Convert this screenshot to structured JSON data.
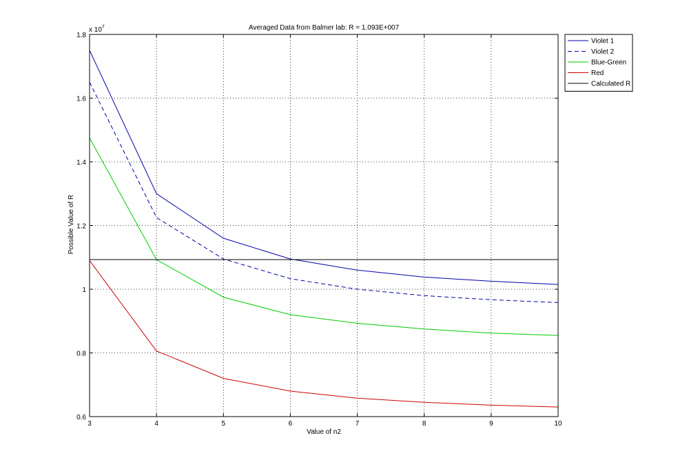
{
  "chart_data": {
    "type": "line",
    "title": "Averaged Data from Balmer lab: R = 1.093E+007",
    "xlabel": "Value of n2",
    "ylabel": "Possible Value of R",
    "y_exponent_label": "x 10",
    "y_exponent_power": "7",
    "xlim": [
      3,
      10
    ],
    "ylim": [
      0.6,
      1.8
    ],
    "y_scale_factor": 10000000,
    "x_ticks": [
      3,
      4,
      5,
      6,
      7,
      8,
      9,
      10
    ],
    "x_tick_labels": [
      "3",
      "4",
      "5",
      "6",
      "7",
      "8",
      "9",
      "10"
    ],
    "y_ticks": [
      0.6,
      0.8,
      1.0,
      1.2,
      1.4,
      1.6,
      1.8
    ],
    "y_tick_labels": [
      "0.6",
      "0.8",
      "1",
      "1.2",
      "1.4",
      "1.6",
      "1.8"
    ],
    "grid": true,
    "legend_position": "outside-top-right",
    "x": [
      3,
      4,
      5,
      6,
      7,
      8,
      9,
      10
    ],
    "series": [
      {
        "name": "Violet 1",
        "color": "#0000aa",
        "dash": "solid",
        "values": [
          1.75,
          1.3,
          1.16,
          1.095,
          1.06,
          1.038,
          1.025,
          1.015
        ]
      },
      {
        "name": "Violet 2",
        "color": "#0000aa",
        "dash": "dashed",
        "values": [
          1.65,
          1.225,
          1.095,
          1.033,
          1.0,
          0.98,
          0.967,
          0.958
        ]
      },
      {
        "name": "Blue-Green",
        "color": "#00cc00",
        "dash": "solid",
        "values": [
          1.475,
          1.093,
          0.975,
          0.92,
          0.893,
          0.875,
          0.862,
          0.855
        ]
      },
      {
        "name": "Red",
        "color": "#cc0000",
        "dash": "solid",
        "values": [
          1.09,
          0.806,
          0.72,
          0.68,
          0.658,
          0.645,
          0.636,
          0.63
        ]
      },
      {
        "name": "Calculated R",
        "color": "#000000",
        "dash": "solid",
        "values": [
          1.093,
          1.093,
          1.093,
          1.093,
          1.093,
          1.093,
          1.093,
          1.093
        ]
      }
    ]
  }
}
